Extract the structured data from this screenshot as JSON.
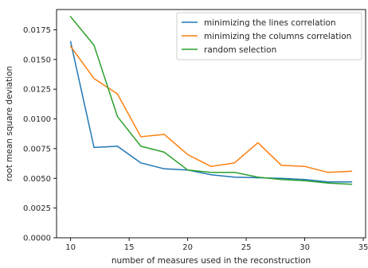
{
  "chart_data": {
    "type": "line",
    "title": "",
    "xlabel": "number of measures used in the reconstruction",
    "ylabel": "root mean square deviation",
    "xlim": [
      8.8,
      35.2
    ],
    "ylim": [
      0.0,
      0.0192
    ],
    "xticks": [
      10,
      15,
      20,
      25,
      30,
      35
    ],
    "xtick_labels": [
      "10",
      "15",
      "20",
      "25",
      "30",
      "35"
    ],
    "yticks": [
      0.0,
      0.0025,
      0.005,
      0.0075,
      0.01,
      0.0125,
      0.015,
      0.0175
    ],
    "ytick_labels": [
      "0.0000",
      "0.0025",
      "0.0050",
      "0.0075",
      "0.0100",
      "0.0125",
      "0.0150",
      "0.0175"
    ],
    "grid": false,
    "legend_position": "top-right",
    "series": [
      {
        "name": "minimizing the lines correlation",
        "color": "#1f77b4",
        "x": [
          10,
          12,
          14,
          16,
          18,
          20,
          22,
          24,
          26,
          28,
          30,
          32,
          34
        ],
        "y": [
          0.0165,
          0.0076,
          0.0077,
          0.0063,
          0.0058,
          0.0057,
          0.0053,
          0.0051,
          0.00505,
          0.005,
          0.0049,
          0.0047,
          0.0047
        ]
      },
      {
        "name": "minimizing the columns correlation",
        "color": "#ff7f0e",
        "x": [
          10,
          12,
          14,
          16,
          18,
          20,
          22,
          24,
          26,
          28,
          30,
          32,
          34
        ],
        "y": [
          0.0161,
          0.0134,
          0.0121,
          0.0085,
          0.0087,
          0.007,
          0.006,
          0.0063,
          0.008,
          0.0061,
          0.006,
          0.0055,
          0.0056
        ]
      },
      {
        "name": "random selection",
        "color": "#2ca02c",
        "x": [
          10,
          12,
          14,
          16,
          18,
          20,
          22,
          24,
          26,
          28,
          30,
          32,
          34
        ],
        "y": [
          0.0186,
          0.0162,
          0.0102,
          0.0077,
          0.0072,
          0.0057,
          0.0055,
          0.0055,
          0.0051,
          0.0049,
          0.0048,
          0.0046,
          0.0045
        ]
      }
    ]
  }
}
